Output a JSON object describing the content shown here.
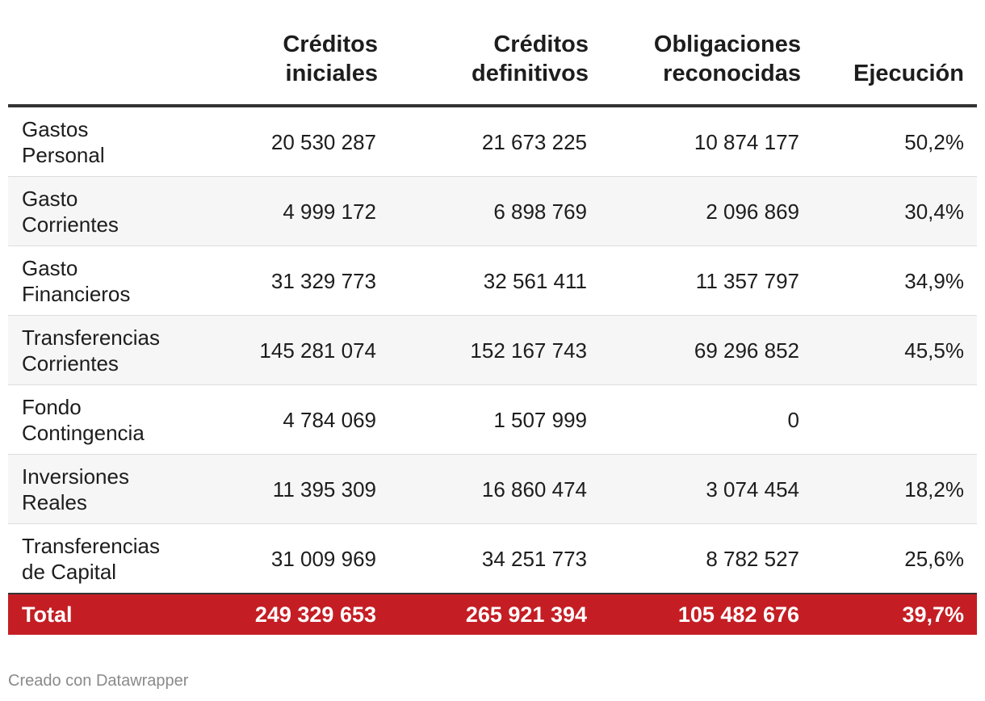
{
  "chart_data": {
    "type": "table",
    "columns": [
      "",
      "Créditos\niniciales",
      "Créditos\ndefinitivos",
      "Obligaciones\nreconocidas",
      "Ejecución"
    ],
    "rows": [
      {
        "label": "Gastos\nPersonal",
        "values": [
          "20 530 287",
          "21 673 225",
          "10 874 177",
          "50,2%"
        ]
      },
      {
        "label": "Gasto\nCorrientes",
        "values": [
          "4 999 172",
          "6 898 769",
          "2 096 869",
          "30,4%"
        ]
      },
      {
        "label": "Gasto\nFinancieros",
        "values": [
          "31 329 773",
          "32 561 411",
          "11 357 797",
          "34,9%"
        ]
      },
      {
        "label": "Transferencias\nCorrientes",
        "values": [
          "145 281 074",
          "152 167 743",
          "69 296 852",
          "45,5%"
        ]
      },
      {
        "label": "Fondo\nContingencia",
        "values": [
          "4 784 069",
          "1 507 999",
          "0",
          ""
        ]
      },
      {
        "label": "Inversiones\nReales",
        "values": [
          "11 395 309",
          "16 860 474",
          "3 074 454",
          "18,2%"
        ]
      },
      {
        "label": "Transferencias\nde Capital",
        "values": [
          "31 009 969",
          "34 251 773",
          "8 782 527",
          "25,6%"
        ]
      }
    ],
    "total": {
      "label": "Total",
      "values": [
        "249 329 653",
        "265 921 394",
        "105 482 676",
        "39,7%"
      ]
    },
    "colors": {
      "total_bg": "#c41e24",
      "alt_row_bg": "#f6f6f6"
    }
  },
  "footer": {
    "credit": "Creado con Datawrapper"
  }
}
